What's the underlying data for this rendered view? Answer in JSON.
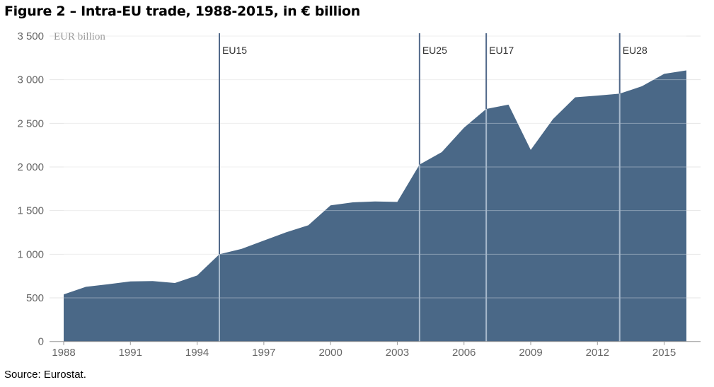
{
  "title": "Figure 2 – Intra-EU trade, 1988-2015, in € billion",
  "source": "Source: Eurostat.",
  "chart_data": {
    "type": "area",
    "title": "Figure 2 – Intra-EU trade, 1988-2015, in € billion",
    "ylabel": "EUR billion",
    "xlabel": "",
    "x": [
      1988,
      1989,
      1990,
      1991,
      1992,
      1993,
      1994,
      1995,
      1996,
      1997,
      1998,
      1999,
      2000,
      2001,
      2002,
      2003,
      2004,
      2005,
      2006,
      2007,
      2008,
      2009,
      2010,
      2011,
      2012,
      2013,
      2014,
      2015,
      2016
    ],
    "values": [
      540,
      627,
      656,
      689,
      693,
      670,
      757,
      1000,
      1062,
      1157,
      1251,
      1332,
      1560,
      1595,
      1605,
      1600,
      2027,
      2170,
      2450,
      2665,
      2715,
      2196,
      2548,
      2799,
      2818,
      2840,
      2925,
      3067,
      3107
    ],
    "xlim": [
      1988,
      2016
    ],
    "ylim": [
      0,
      3500
    ],
    "x_ticks": [
      "1988",
      "1991",
      "1994",
      "1997",
      "2000",
      "2003",
      "2006",
      "2009",
      "2012",
      "2015"
    ],
    "y_ticks": [
      {
        "value": 0,
        "label": "0"
      },
      {
        "value": 500,
        "label": "500"
      },
      {
        "value": 1000,
        "label": "1 000"
      },
      {
        "value": 1500,
        "label": "1 500"
      },
      {
        "value": 2000,
        "label": "2 000"
      },
      {
        "value": 2500,
        "label": "2 500"
      },
      {
        "value": 3000,
        "label": "3 000"
      },
      {
        "value": 3500,
        "label": "3 500"
      }
    ],
    "grid": true,
    "annotations": [
      {
        "x": 1995,
        "label": "EU15"
      },
      {
        "x": 2004,
        "label": "EU25"
      },
      {
        "x": 2007,
        "label": "EU17"
      },
      {
        "x": 2013,
        "label": "EU28"
      }
    ],
    "colors": {
      "fill": "#4a6887",
      "marker_line": "#52698a",
      "marker_line_inside": "#a6b8cb",
      "grid": "#e6e6e6"
    }
  }
}
